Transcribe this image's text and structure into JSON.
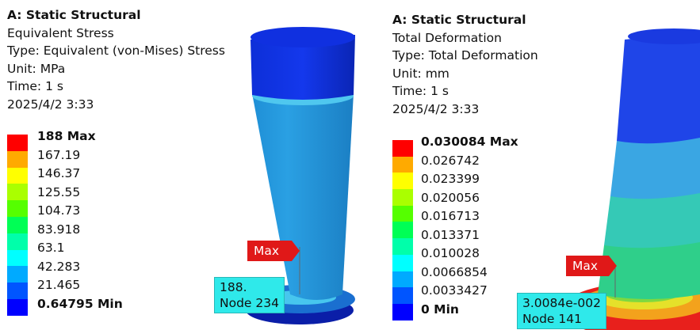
{
  "left": {
    "analysis": "A: Static Structural",
    "result": "Equivalent Stress",
    "type_line": "Type: Equivalent (von-Mises) Stress",
    "unit_line": "Unit: MPa",
    "time_line": "Time: 1 s",
    "date_line": "2025/4/2 3:33",
    "legend": [
      "188 Max",
      "167.19",
      "146.37",
      "125.55",
      "104.73",
      "83.918",
      "63.1",
      "42.283",
      "21.465",
      "0.64795 Min"
    ],
    "probe_flag": "Max",
    "probe_value": "188.",
    "probe_node": "Node 234"
  },
  "right": {
    "analysis": "A: Static Structural",
    "result": "Total Deformation",
    "type_line": "Type: Total Deformation",
    "unit_line": "Unit: mm",
    "time_line": "Time: 1 s",
    "date_line": "2025/4/2 3:33",
    "legend": [
      "0.030084 Max",
      "0.026742",
      "0.023399",
      "0.020056",
      "0.016713",
      "0.013371",
      "0.010028",
      "0.0066854",
      "0.0033427",
      "0 Min"
    ],
    "probe_flag": "Max",
    "probe_value": "3.0084e-002",
    "probe_node": "Node 141"
  },
  "legend_colors": [
    "#ff0000",
    "#ffaa00",
    "#ffff00",
    "#aaff00",
    "#55ff00",
    "#00ff55",
    "#00ffaa",
    "#00ffff",
    "#00aaff",
    "#0055ff",
    "#0000ff"
  ]
}
